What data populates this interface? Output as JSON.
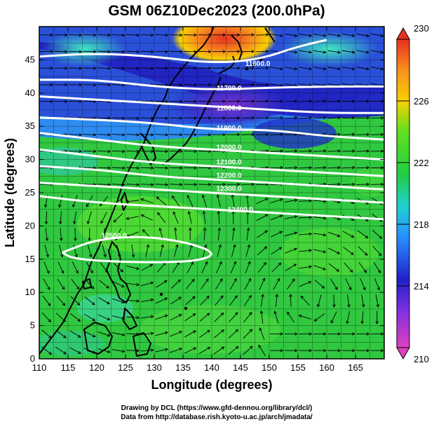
{
  "title": "GSM 06Z10Dec2023 (200.0hPa)",
  "xlabel": "Longitude (degrees)",
  "ylabel": "Latitude  (degrees)",
  "credits": [
    "Drawing by DCL (https://www.gfd-dennou.org/library/dcl/)",
    "Data from http://database.rish.kyoto-u.ac.jp/arch/jmadata/"
  ],
  "colors": {
    "min": "#e040c0",
    "low": "#2020c8",
    "cool": "#2890ff",
    "mid": "#22cc44",
    "warm": "#f8d000",
    "max": "#e83020",
    "contour": "#ffffff",
    "arrow": "#000000",
    "coast": "#000000"
  },
  "chart_data": {
    "type": "heatmap",
    "xlim": [
      110,
      170
    ],
    "ylim": [
      0,
      50
    ],
    "x_ticks": [
      "110",
      "115",
      "120",
      "125",
      "130",
      "135",
      "140",
      "145",
      "150",
      "155",
      "160",
      "165"
    ],
    "y_ticks": [
      "0",
      "5",
      "10",
      "15",
      "20",
      "25",
      "30",
      "35",
      "40",
      "45"
    ],
    "colorbar": {
      "min": 210,
      "max": 230,
      "ticks": [
        "210",
        "214",
        "218",
        "222",
        "226",
        "230"
      ]
    },
    "contours": [
      {
        "label": "11600.0",
        "points": [
          [
            110,
            45.5
          ],
          [
            120,
            46
          ],
          [
            130,
            45.5
          ],
          [
            140,
            44.5
          ],
          [
            148,
            45
          ],
          [
            155,
            47
          ],
          [
            160,
            48
          ]
        ],
        "label_at": [
          148,
          44.5
        ]
      },
      {
        "label": "11700.0",
        "points": [
          [
            110,
            42
          ],
          [
            120,
            42
          ],
          [
            130,
            41
          ],
          [
            140,
            40.5
          ],
          [
            150,
            40.8
          ],
          [
            160,
            41
          ],
          [
            170,
            41
          ]
        ],
        "label_at": [
          143,
          40.8
        ]
      },
      {
        "label": "11800.0",
        "points": [
          [
            110,
            39.5
          ],
          [
            120,
            39
          ],
          [
            130,
            38.5
          ],
          [
            140,
            38
          ],
          [
            150,
            37.5
          ],
          [
            160,
            37
          ],
          [
            170,
            37
          ]
        ],
        "label_at": [
          143,
          37.8
        ]
      },
      {
        "label": "11900.0",
        "points": [
          [
            110,
            36.3
          ],
          [
            120,
            36
          ],
          [
            130,
            35.5
          ],
          [
            140,
            34.5
          ],
          [
            150,
            34.5
          ],
          [
            160,
            33.5
          ],
          [
            170,
            33
          ]
        ],
        "label_at": [
          143,
          34.8
        ]
      },
      {
        "label": "12000.0",
        "points": [
          [
            110,
            34
          ],
          [
            120,
            33
          ],
          [
            130,
            32
          ],
          [
            140,
            31.5
          ],
          [
            150,
            31
          ],
          [
            160,
            30.5
          ],
          [
            170,
            30
          ]
        ],
        "label_at": [
          143,
          31.9
        ]
      },
      {
        "label": "12100.0",
        "points": [
          [
            110,
            31.5
          ],
          [
            120,
            30.5
          ],
          [
            130,
            29.5
          ],
          [
            140,
            29
          ],
          [
            150,
            28.5
          ],
          [
            160,
            28
          ],
          [
            170,
            27.5
          ]
        ],
        "label_at": [
          143,
          29.7
        ]
      },
      {
        "label": "12200.0",
        "points": [
          [
            110,
            29
          ],
          [
            120,
            28.5
          ],
          [
            130,
            27.5
          ],
          [
            140,
            27
          ],
          [
            150,
            26.5
          ],
          [
            160,
            26
          ],
          [
            170,
            25.5
          ]
        ],
        "label_at": [
          143,
          27.7
        ]
      },
      {
        "label": "12300.0",
        "points": [
          [
            110,
            26.5
          ],
          [
            120,
            26
          ],
          [
            130,
            25.5
          ],
          [
            140,
            25
          ],
          [
            150,
            24.5
          ],
          [
            160,
            24
          ],
          [
            170,
            23.5
          ]
        ],
        "label_at": [
          143,
          25.7
        ]
      },
      {
        "label": "12400.0",
        "points": [
          [
            110,
            24.5
          ],
          [
            120,
            23.5
          ],
          [
            130,
            23
          ],
          [
            140,
            22.5
          ],
          [
            150,
            22
          ],
          [
            160,
            21.5
          ],
          [
            170,
            21
          ]
        ],
        "label_at": [
          145,
          22.5
        ]
      },
      {
        "label": "12500.0",
        "points": [
          [
            114,
            16
          ],
          [
            120,
            18
          ],
          [
            128,
            18.5
          ],
          [
            136,
            17.5
          ],
          [
            141,
            15.8
          ],
          [
            137,
            14.6
          ],
          [
            126,
            14.5
          ],
          [
            116,
            15
          ],
          [
            114,
            16
          ]
        ],
        "label_at": [
          123,
          18.6
        ]
      }
    ]
  }
}
